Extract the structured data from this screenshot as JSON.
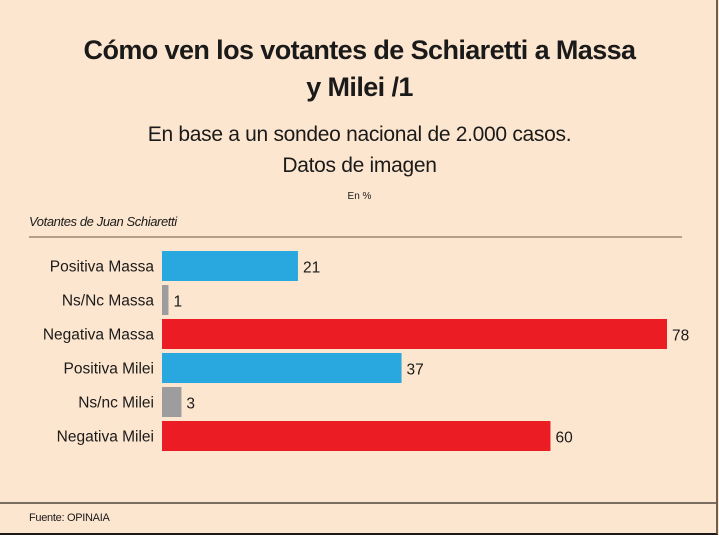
{
  "title": "Cómo ven los votantes de Schiaretti a Massa y Milei /1",
  "title_lines": [
    "Cómo ven los votantes de Schiaretti a Massa",
    "y Milei /1"
  ],
  "subtitle_lines": [
    "En base a un sondeo nacional de 2.000 casos.",
    "Datos de imagen"
  ],
  "unit_note": "En %",
  "group_label": "Votantes de Juan Schiaretti",
  "source": "Fuente: OPINAIA",
  "colors": {
    "background": "#fde6cf",
    "positiva": "#29a8e0",
    "nsnc": "#9d9d9d",
    "negativa": "#ec1c24"
  },
  "chart_data": {
    "type": "bar",
    "orientation": "horizontal",
    "title": "Cómo ven los votantes de Schiaretti a Massa y Milei /1",
    "subtitle": "En base a un sondeo nacional de 2.000 casos. Datos de imagen",
    "unit": "En %",
    "xlabel": "",
    "ylabel": "Votantes de Juan Schiaretti",
    "xlim": [
      0,
      80
    ],
    "grid": false,
    "legend": "none",
    "categories": [
      "Positiva Massa",
      "Ns/Nc Massa",
      "Negativa Massa",
      "Positiva Milei",
      "Ns/nc Milei",
      "Negativa Milei"
    ],
    "values": [
      21,
      1,
      78,
      37,
      3,
      60
    ],
    "bar_colors": [
      "#29a8e0",
      "#9d9d9d",
      "#ec1c24",
      "#29a8e0",
      "#9d9d9d",
      "#ec1c24"
    ],
    "data_labels": [
      "21",
      "1",
      "78",
      "37",
      "3",
      "60"
    ],
    "source": "Fuente: OPINAIA"
  }
}
